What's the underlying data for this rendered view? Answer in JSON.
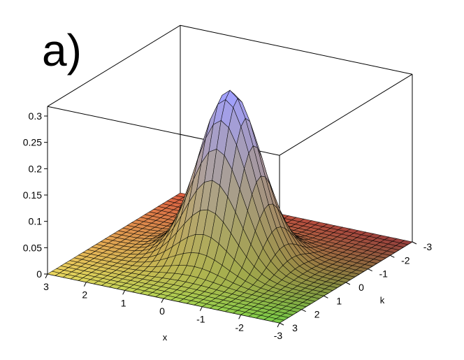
{
  "panel_label": "a)",
  "chart_data": {
    "type": "surface3d",
    "title": "",
    "xlabel": "x",
    "ylabel": "k",
    "zlabel": "",
    "function": "z = (1/pi) * exp(-x^2 - k^2)",
    "xlim": [
      -3,
      3
    ],
    "ylim": [
      -3,
      3
    ],
    "zlim": [
      0,
      0.3183
    ],
    "x_ticks": [
      "3",
      "2",
      "1",
      "0",
      "-1",
      "-2",
      "-3"
    ],
    "y_ticks": [
      "-3",
      "-2",
      "-1",
      "0",
      "1",
      "2",
      "3"
    ],
    "z_ticks": [
      "0.3",
      "0.25",
      "0.2",
      "0.15",
      "0.1",
      "0.05",
      "0"
    ],
    "grid_resolution": 30,
    "peak": {
      "x": 0,
      "k": 0,
      "z": 0.3183
    },
    "colors": {
      "corner_x3_km3": "#e66a3c",
      "corner_xm3_km3": "#b03a3a",
      "corner_x3_k3": "#e6d264",
      "corner_xm3_k3": "#6fc845",
      "peak": "#a0a0ff",
      "mesh": "#000000",
      "box": "#000000"
    }
  }
}
